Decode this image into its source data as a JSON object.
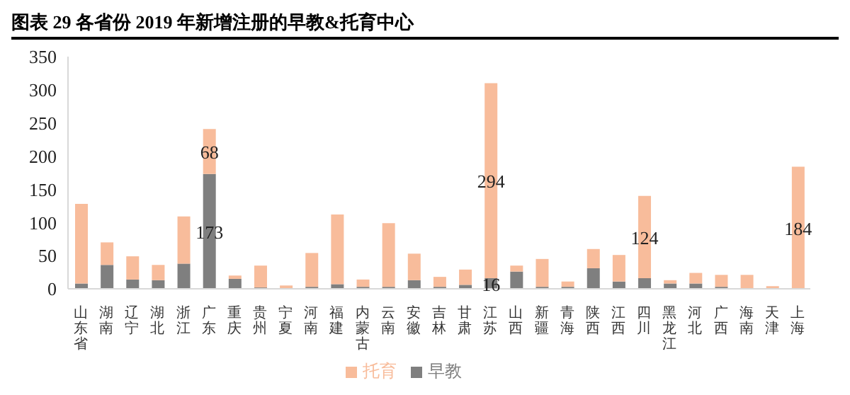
{
  "chart_data": {
    "type": "bar",
    "title": "图表 29 各省份 2019 年新增注册的早教&托育中心",
    "stacked": true,
    "categories": [
      "山东省",
      "湖南",
      "辽宁",
      "湖北",
      "浙江",
      "广东",
      "重庆",
      "贵州",
      "宁夏",
      "河南",
      "福建",
      "内蒙古",
      "云南",
      "安徽",
      "吉林",
      "甘肃",
      "江苏",
      "山西",
      "新疆",
      "青海",
      "陕西",
      "江西",
      "四川",
      "黑龙江",
      "河北",
      "广西",
      "海南",
      "天津",
      "上海"
    ],
    "series": [
      {
        "name": "早教",
        "color": "#7f7f7f",
        "values": [
          8,
          36,
          14,
          13,
          38,
          173,
          15,
          2,
          null,
          3,
          7,
          3,
          3,
          13,
          3,
          6,
          16,
          26,
          3,
          3,
          31,
          11,
          16,
          8,
          8,
          3,
          0,
          0,
          0
        ],
        "value_labels": [
          null,
          null,
          null,
          null,
          null,
          "173",
          null,
          null,
          null,
          null,
          null,
          null,
          null,
          null,
          null,
          null,
          "16",
          null,
          null,
          null,
          null,
          null,
          null,
          null,
          null,
          null,
          null,
          null,
          null
        ]
      },
      {
        "name": "托育",
        "color": "#f8bc9b",
        "values": [
          120,
          34,
          35,
          23,
          71,
          68,
          5,
          33,
          5,
          51,
          105,
          11,
          96,
          40,
          15,
          23,
          294,
          9,
          42,
          8,
          29,
          40,
          124,
          5,
          16,
          18,
          21,
          4,
          184
        ],
        "value_labels": [
          null,
          null,
          null,
          null,
          null,
          "68",
          null,
          null,
          null,
          null,
          null,
          null,
          null,
          null,
          null,
          null,
          "294",
          null,
          null,
          null,
          null,
          null,
          "124",
          null,
          null,
          null,
          null,
          null,
          "184"
        ]
      }
    ],
    "ylim": [
      0,
      350
    ],
    "yticks": [
      0,
      50,
      100,
      150,
      200,
      250,
      300,
      350
    ],
    "grid": false,
    "legend": "bottom"
  }
}
